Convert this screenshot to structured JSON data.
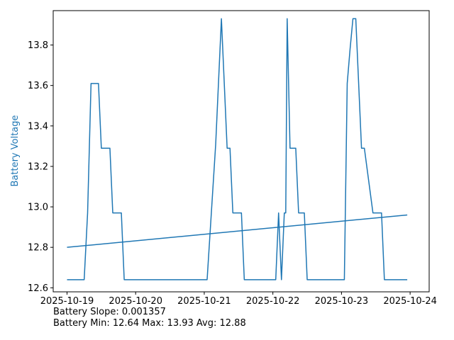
{
  "chart_data": {
    "type": "line",
    "ylabel": "Battery Voltage",
    "ylabel_color": "#1f77b4",
    "x_axis": {
      "type": "date",
      "range": [
        "2025-10-18T19:10:00",
        "2025-10-24T06:40:00"
      ],
      "tick_labels": [
        "2025-10-19",
        "2025-10-20",
        "2025-10-21",
        "2025-10-22",
        "2025-10-23",
        "2025-10-24"
      ]
    },
    "ylim": [
      12.58,
      13.97
    ],
    "yticks": [
      12.6,
      12.8,
      13.0,
      13.2,
      13.4,
      13.6,
      13.8
    ],
    "ytick_labels": [
      "12.6",
      "12.8",
      "13.0",
      "13.2",
      "13.4",
      "13.6",
      "13.8"
    ],
    "grid": false,
    "series": [
      {
        "color": "#1f77b4",
        "x": [
          "2025-10-19T00:00",
          "2025-10-19T06:00",
          "2025-10-19T07:12",
          "2025-10-19T08:24",
          "2025-10-19T09:00",
          "2025-10-19T11:00",
          "2025-10-19T12:00",
          "2025-10-19T15:00",
          "2025-10-19T16:00",
          "2025-10-19T19:00",
          "2025-10-19T20:00",
          "2025-10-21T01:00",
          "2025-10-21T04:00",
          "2025-10-21T06:00",
          "2025-10-21T08:00",
          "2025-10-21T09:00",
          "2025-10-21T10:00",
          "2025-10-21T13:00",
          "2025-10-21T14:00",
          "2025-10-22T01:00",
          "2025-10-22T02:00",
          "2025-10-22T03:00",
          "2025-10-22T04:00",
          "2025-10-22T04:30",
          "2025-10-22T05:00",
          "2025-10-22T06:00",
          "2025-10-22T08:00",
          "2025-10-22T09:00",
          "2025-10-22T11:00",
          "2025-10-22T12:00",
          "2025-10-22T14:00",
          "2025-10-22T15:00",
          "2025-10-23T01:00",
          "2025-10-23T02:00",
          "2025-10-23T03:00",
          "2025-10-23T04:00",
          "2025-10-23T05:00",
          "2025-10-23T07:00",
          "2025-10-23T08:00",
          "2025-10-23T11:00",
          "2025-10-23T12:00",
          "2025-10-23T14:00",
          "2025-10-23T15:00",
          "2025-10-23T16:00",
          "2025-10-23T23:00"
        ],
        "values": [
          12.64,
          12.64,
          12.97,
          13.61,
          13.61,
          13.61,
          13.29,
          13.29,
          12.97,
          12.97,
          12.64,
          12.64,
          13.31,
          13.93,
          13.29,
          13.29,
          12.97,
          12.97,
          12.64,
          12.64,
          12.97,
          12.64,
          12.97,
          12.97,
          13.93,
          13.29,
          13.29,
          12.97,
          12.97,
          12.64,
          12.64,
          12.64,
          12.64,
          13.61,
          13.78,
          13.93,
          13.93,
          13.29,
          13.29,
          12.97,
          12.97,
          12.97,
          12.64,
          12.64,
          12.64
        ]
      },
      {
        "role": "trend",
        "color": "#1f77b4",
        "x": [
          "2025-10-19T00:00",
          "2025-10-23T23:00"
        ],
        "values": [
          12.8,
          12.96
        ]
      }
    ]
  },
  "stats": {
    "slope_text": "Battery Slope: 0.001357",
    "minmax_text": "Battery Min: 12.64 Max: 13.93 Avg: 12.88"
  }
}
